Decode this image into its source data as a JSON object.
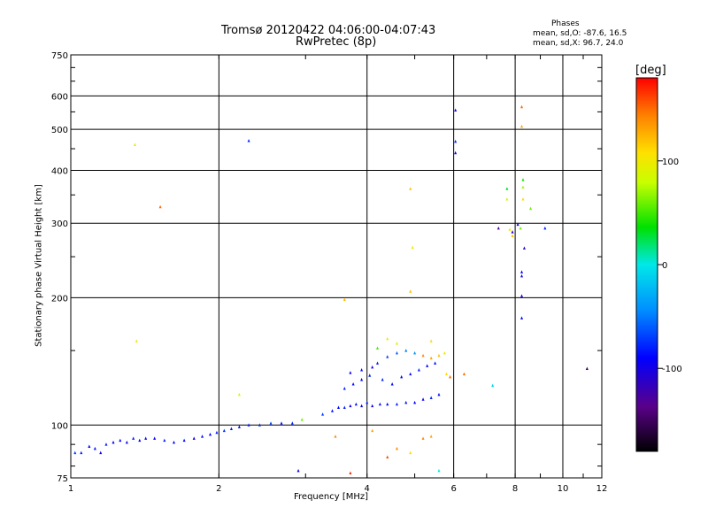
{
  "title_line1": "Tromsø 20120422 04:06:00-04:07:43",
  "title_line2": "RwPretec (8p)",
  "phases": {
    "heading": "Phases",
    "o_line": "mean, sd,O: -87.6, 16.5",
    "x_line": "mean, sd,X:  96.7, 24.0"
  },
  "colorbar": {
    "unit": "[deg]",
    "range": [
      -180,
      180
    ],
    "ticks": [
      {
        "value": 100,
        "label": "100"
      },
      {
        "value": 0,
        "label": "0"
      },
      {
        "value": -100,
        "label": "-100"
      }
    ]
  },
  "chart_data": {
    "type": "scatter",
    "xlabel": "Frequency [MHz]",
    "ylabel": "Stationary phase Virtual Height [km]",
    "x_scale": "log",
    "y_scale": "log",
    "xlim": [
      1,
      12
    ],
    "ylim": [
      75,
      750
    ],
    "grid": true,
    "x_ticks": [
      {
        "value": 1,
        "label": "1"
      },
      {
        "value": 2,
        "label": "2"
      },
      {
        "value": 4,
        "label": "4"
      },
      {
        "value": 6,
        "label": "6"
      },
      {
        "value": 8,
        "label": "8"
      },
      {
        "value": 10,
        "label": "10"
      },
      {
        "value": 12,
        "label": "12"
      }
    ],
    "y_ticks": [
      {
        "value": 75,
        "label": "75"
      },
      {
        "value": 100,
        "label": "100"
      },
      {
        "value": 200,
        "label": "200"
      },
      {
        "value": 300,
        "label": "300"
      },
      {
        "value": 400,
        "label": "400"
      },
      {
        "value": 500,
        "label": "500"
      },
      {
        "value": 600,
        "label": "600"
      },
      {
        "value": 750,
        "label": "750"
      }
    ],
    "points": [
      {
        "x": 1.02,
        "y": 86,
        "phase": -70
      },
      {
        "x": 1.05,
        "y": 86,
        "phase": -80
      },
      {
        "x": 1.09,
        "y": 89,
        "phase": -90
      },
      {
        "x": 1.12,
        "y": 88,
        "phase": -85
      },
      {
        "x": 1.15,
        "y": 86,
        "phase": -95
      },
      {
        "x": 1.18,
        "y": 90,
        "phase": -80
      },
      {
        "x": 1.22,
        "y": 91,
        "phase": -90
      },
      {
        "x": 1.26,
        "y": 92,
        "phase": -85
      },
      {
        "x": 1.3,
        "y": 91,
        "phase": -100
      },
      {
        "x": 1.34,
        "y": 93,
        "phase": -80
      },
      {
        "x": 1.38,
        "y": 92,
        "phase": -90
      },
      {
        "x": 1.42,
        "y": 93,
        "phase": -85
      },
      {
        "x": 1.48,
        "y": 93,
        "phase": -95
      },
      {
        "x": 1.55,
        "y": 92,
        "phase": -80
      },
      {
        "x": 1.62,
        "y": 91,
        "phase": -90
      },
      {
        "x": 1.7,
        "y": 92,
        "phase": -85
      },
      {
        "x": 1.78,
        "y": 93,
        "phase": -100
      },
      {
        "x": 1.85,
        "y": 94,
        "phase": -85
      },
      {
        "x": 1.92,
        "y": 95,
        "phase": -90
      },
      {
        "x": 1.98,
        "y": 96,
        "phase": -80
      },
      {
        "x": 2.05,
        "y": 97,
        "phase": -75
      },
      {
        "x": 2.12,
        "y": 98,
        "phase": -85
      },
      {
        "x": 2.2,
        "y": 99,
        "phase": -90
      },
      {
        "x": 2.3,
        "y": 100,
        "phase": -80
      },
      {
        "x": 2.42,
        "y": 100,
        "phase": -75
      },
      {
        "x": 2.55,
        "y": 101,
        "phase": -70
      },
      {
        "x": 2.68,
        "y": 101,
        "phase": -85
      },
      {
        "x": 2.82,
        "y": 101,
        "phase": -80
      },
      {
        "x": 2.95,
        "y": 103,
        "phase": 60
      },
      {
        "x": 3.25,
        "y": 106,
        "phase": -70
      },
      {
        "x": 3.4,
        "y": 108,
        "phase": -85
      },
      {
        "x": 3.5,
        "y": 110,
        "phase": -90
      },
      {
        "x": 3.6,
        "y": 110,
        "phase": -80
      },
      {
        "x": 3.7,
        "y": 111,
        "phase": -95
      },
      {
        "x": 3.8,
        "y": 112,
        "phase": -85
      },
      {
        "x": 3.9,
        "y": 111,
        "phase": -90
      },
      {
        "x": 4.0,
        "y": 113,
        "phase": -80
      },
      {
        "x": 4.1,
        "y": 111,
        "phase": -100
      },
      {
        "x": 4.25,
        "y": 112,
        "phase": -85
      },
      {
        "x": 4.4,
        "y": 112,
        "phase": -90
      },
      {
        "x": 4.6,
        "y": 112,
        "phase": -80
      },
      {
        "x": 4.8,
        "y": 113,
        "phase": -85
      },
      {
        "x": 5.0,
        "y": 113,
        "phase": -90
      },
      {
        "x": 5.2,
        "y": 115,
        "phase": -95
      },
      {
        "x": 5.4,
        "y": 116,
        "phase": -80
      },
      {
        "x": 5.6,
        "y": 118,
        "phase": -85
      },
      {
        "x": 3.6,
        "y": 122,
        "phase": -80
      },
      {
        "x": 3.75,
        "y": 125,
        "phase": -85
      },
      {
        "x": 3.9,
        "y": 128,
        "phase": -90
      },
      {
        "x": 4.05,
        "y": 131,
        "phase": -80
      },
      {
        "x": 3.7,
        "y": 133,
        "phase": -95
      },
      {
        "x": 3.9,
        "y": 135,
        "phase": -85
      },
      {
        "x": 4.1,
        "y": 137,
        "phase": -100
      },
      {
        "x": 4.3,
        "y": 128,
        "phase": -80
      },
      {
        "x": 4.5,
        "y": 125,
        "phase": -85
      },
      {
        "x": 4.7,
        "y": 130,
        "phase": -90
      },
      {
        "x": 4.9,
        "y": 132,
        "phase": -85
      },
      {
        "x": 5.1,
        "y": 135,
        "phase": -80
      },
      {
        "x": 5.3,
        "y": 138,
        "phase": -90
      },
      {
        "x": 5.5,
        "y": 140,
        "phase": -85
      },
      {
        "x": 4.2,
        "y": 140,
        "phase": -80
      },
      {
        "x": 4.4,
        "y": 145,
        "phase": -70
      },
      {
        "x": 4.6,
        "y": 148,
        "phase": -60
      },
      {
        "x": 4.8,
        "y": 150,
        "phase": -50
      },
      {
        "x": 5.0,
        "y": 148,
        "phase": -40
      },
      {
        "x": 5.2,
        "y": 146,
        "phase": 140
      },
      {
        "x": 5.4,
        "y": 144,
        "phase": 130
      },
      {
        "x": 5.6,
        "y": 146,
        "phase": 120
      },
      {
        "x": 5.75,
        "y": 148,
        "phase": 100
      },
      {
        "x": 5.8,
        "y": 132,
        "phase": 110
      },
      {
        "x": 4.4,
        "y": 160,
        "phase": 100
      },
      {
        "x": 4.6,
        "y": 156,
        "phase": 90
      },
      {
        "x": 5.4,
        "y": 158,
        "phase": 110
      },
      {
        "x": 4.2,
        "y": 152,
        "phase": 50
      },
      {
        "x": 5.9,
        "y": 130,
        "phase": 150
      },
      {
        "x": 6.3,
        "y": 132,
        "phase": 150
      },
      {
        "x": 5.2,
        "y": 93,
        "phase": 140
      },
      {
        "x": 5.4,
        "y": 94,
        "phase": 130
      },
      {
        "x": 4.6,
        "y": 88,
        "phase": 140
      },
      {
        "x": 4.4,
        "y": 84,
        "phase": 160
      },
      {
        "x": 4.9,
        "y": 86,
        "phase": 110
      },
      {
        "x": 3.45,
        "y": 94,
        "phase": 140
      },
      {
        "x": 4.1,
        "y": 97,
        "phase": 130
      },
      {
        "x": 5.6,
        "y": 78,
        "phase": 0
      },
      {
        "x": 3.7,
        "y": 77,
        "phase": 170
      },
      {
        "x": 2.9,
        "y": 78,
        "phase": -100
      },
      {
        "x": 3.6,
        "y": 198,
        "phase": 120
      },
      {
        "x": 4.9,
        "y": 207,
        "phase": 120
      },
      {
        "x": 4.95,
        "y": 263,
        "phase": 100
      },
      {
        "x": 4.9,
        "y": 362,
        "phase": 120
      },
      {
        "x": 1.35,
        "y": 460,
        "phase": 100
      },
      {
        "x": 1.52,
        "y": 328,
        "phase": 150
      },
      {
        "x": 1.36,
        "y": 158,
        "phase": 100
      },
      {
        "x": 2.2,
        "y": 118,
        "phase": 90
      },
      {
        "x": 2.3,
        "y": 470,
        "phase": -80
      },
      {
        "x": 6.05,
        "y": 555,
        "phase": -100
      },
      {
        "x": 6.05,
        "y": 468,
        "phase": -80
      },
      {
        "x": 6.05,
        "y": 440,
        "phase": -90
      },
      {
        "x": 7.4,
        "y": 292,
        "phase": -130
      },
      {
        "x": 7.8,
        "y": 290,
        "phase": 100
      },
      {
        "x": 7.9,
        "y": 286,
        "phase": -110
      },
      {
        "x": 8.1,
        "y": 298,
        "phase": -100
      },
      {
        "x": 8.2,
        "y": 292,
        "phase": 60
      },
      {
        "x": 8.3,
        "y": 380,
        "phase": 40
      },
      {
        "x": 8.3,
        "y": 365,
        "phase": 70
      },
      {
        "x": 8.3,
        "y": 342,
        "phase": 110
      },
      {
        "x": 7.7,
        "y": 362,
        "phase": 30
      },
      {
        "x": 7.7,
        "y": 342,
        "phase": 80
      },
      {
        "x": 8.6,
        "y": 325,
        "phase": 60
      },
      {
        "x": 7.9,
        "y": 280,
        "phase": 120
      },
      {
        "x": 8.25,
        "y": 565,
        "phase": 150
      },
      {
        "x": 8.25,
        "y": 508,
        "phase": 130
      },
      {
        "x": 8.35,
        "y": 262,
        "phase": -110
      },
      {
        "x": 8.25,
        "y": 230,
        "phase": -90
      },
      {
        "x": 8.25,
        "y": 225,
        "phase": -100
      },
      {
        "x": 8.25,
        "y": 202,
        "phase": -110
      },
      {
        "x": 8.25,
        "y": 179,
        "phase": -90
      },
      {
        "x": 9.2,
        "y": 292,
        "phase": -80
      },
      {
        "x": 7.2,
        "y": 124,
        "phase": -10
      },
      {
        "x": 11.2,
        "y": 136,
        "phase": -150
      }
    ]
  }
}
